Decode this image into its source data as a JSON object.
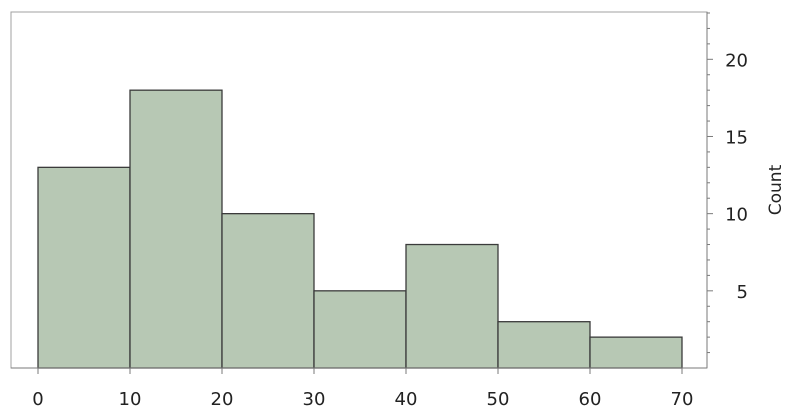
{
  "chart_data": {
    "type": "bar",
    "bins": [
      [
        0,
        10
      ],
      [
        10,
        20
      ],
      [
        20,
        30
      ],
      [
        30,
        40
      ],
      [
        40,
        50
      ],
      [
        50,
        60
      ],
      [
        60,
        70
      ]
    ],
    "values": [
      13,
      18,
      10,
      5,
      8,
      3,
      2
    ],
    "xlim": [
      0,
      70
    ],
    "ylim": [
      0,
      23
    ],
    "xticks": [
      0,
      10,
      20,
      30,
      40,
      50,
      60,
      70
    ],
    "yticks": [
      5,
      10,
      15,
      20
    ],
    "y_minor_tick_step": 1,
    "xlabel": "",
    "ylabel": "Count",
    "y_axis_side": "right",
    "grid": false,
    "colors": {
      "bar_fill": "#b7c8b4",
      "bar_edge": "#3b3b3b"
    }
  }
}
